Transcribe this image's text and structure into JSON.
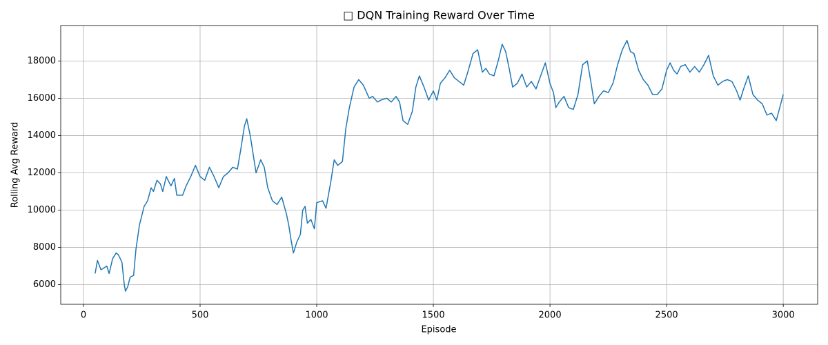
{
  "chart_data": {
    "type": "line",
    "title": "□ DQN Training Reward Over Time",
    "x_label": "Episode",
    "y_label": "Rolling Avg Reward",
    "grid": true,
    "xlim": [
      -97.5,
      3147.5
    ],
    "ylim": [
      4950,
      19900
    ],
    "xticks": [
      0,
      500,
      1000,
      1500,
      2000,
      2500,
      3000
    ],
    "yticks": [
      6000,
      8000,
      10000,
      12000,
      14000,
      16000,
      18000
    ],
    "x": [
      50,
      60,
      75,
      100,
      110,
      125,
      140,
      150,
      165,
      175,
      180,
      190,
      200,
      215,
      225,
      240,
      260,
      275,
      290,
      300,
      315,
      330,
      340,
      355,
      375,
      390,
      400,
      425,
      440,
      460,
      480,
      500,
      520,
      540,
      560,
      580,
      600,
      620,
      640,
      660,
      675,
      690,
      700,
      715,
      730,
      740,
      760,
      775,
      790,
      810,
      830,
      850,
      870,
      880,
      890,
      900,
      915,
      930,
      940,
      950,
      960,
      975,
      990,
      1000,
      1025,
      1040,
      1060,
      1075,
      1090,
      1110,
      1125,
      1140,
      1160,
      1180,
      1200,
      1225,
      1240,
      1260,
      1275,
      1300,
      1320,
      1340,
      1355,
      1370,
      1390,
      1410,
      1425,
      1440,
      1460,
      1480,
      1500,
      1515,
      1530,
      1550,
      1570,
      1590,
      1610,
      1630,
      1650,
      1670,
      1690,
      1710,
      1725,
      1740,
      1760,
      1780,
      1795,
      1810,
      1825,
      1840,
      1860,
      1880,
      1900,
      1920,
      1940,
      1960,
      1980,
      2000,
      2015,
      2025,
      2040,
      2060,
      2080,
      2100,
      2120,
      2140,
      2160,
      2175,
      2190,
      2210,
      2230,
      2250,
      2270,
      2290,
      2310,
      2330,
      2345,
      2360,
      2380,
      2400,
      2420,
      2440,
      2460,
      2480,
      2500,
      2515,
      2530,
      2545,
      2560,
      2580,
      2600,
      2620,
      2640,
      2660,
      2680,
      2700,
      2720,
      2740,
      2760,
      2780,
      2800,
      2815,
      2830,
      2850,
      2870,
      2890,
      2910,
      2930,
      2950,
      2970,
      2985,
      3000
    ],
    "series": [
      {
        "name": "Rolling Avg Reward",
        "color": "#1f77b4",
        "values": [
          6600,
          7300,
          6800,
          7000,
          6600,
          7400,
          7700,
          7600,
          7200,
          6000,
          5650,
          5900,
          6400,
          6500,
          7900,
          9200,
          10200,
          10500,
          11200,
          11000,
          11600,
          11400,
          11000,
          11800,
          11300,
          11700,
          10800,
          10800,
          11300,
          11800,
          12400,
          11800,
          11600,
          12300,
          11800,
          11200,
          11800,
          12000,
          12300,
          12200,
          13300,
          14500,
          14900,
          14000,
          12800,
          12000,
          12700,
          12300,
          11200,
          10500,
          10300,
          10700,
          9800,
          9200,
          8400,
          7700,
          8300,
          8700,
          10000,
          10200,
          9300,
          9500,
          9000,
          10400,
          10500,
          10100,
          11500,
          12700,
          12400,
          12600,
          14400,
          15500,
          16600,
          17000,
          16700,
          16000,
          16100,
          15800,
          15900,
          16000,
          15800,
          16100,
          15800,
          14800,
          14600,
          15300,
          16600,
          17200,
          16600,
          15900,
          16400,
          15900,
          16800,
          17100,
          17500,
          17100,
          16900,
          16700,
          17500,
          18400,
          18600,
          17400,
          17600,
          17300,
          17200,
          18100,
          18900,
          18500,
          17600,
          16600,
          16800,
          17300,
          16600,
          16900,
          16500,
          17200,
          17900,
          16800,
          16300,
          15500,
          15800,
          16100,
          15500,
          15400,
          16200,
          17800,
          18000,
          16900,
          15700,
          16100,
          16400,
          16300,
          16800,
          17800,
          18600,
          19100,
          18500,
          18400,
          17500,
          17000,
          16700,
          16200,
          16200,
          16500,
          17500,
          17900,
          17500,
          17300,
          17700,
          17800,
          17400,
          17700,
          17400,
          17800,
          18300,
          17200,
          16700,
          16900,
          17000,
          16900,
          16400,
          15900,
          16500,
          17200,
          16200,
          15900,
          15700,
          15100,
          15200,
          14800,
          15500,
          16200
        ]
      }
    ]
  }
}
